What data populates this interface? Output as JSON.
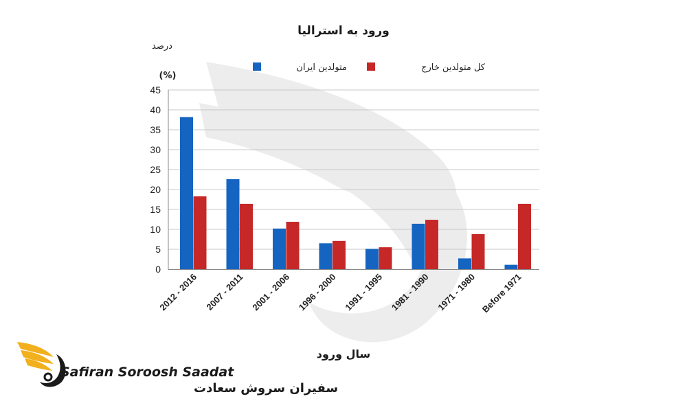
{
  "chart_data": {
    "type": "bar",
    "title": "ورود به استرالیا",
    "y_axis_caption": "درصد",
    "y_unit": "(%)",
    "xlabel": "سال ورود",
    "ylim": [
      0,
      45
    ],
    "yticks": [
      0,
      5,
      10,
      15,
      20,
      25,
      30,
      35,
      40,
      45
    ],
    "grid": true,
    "legend_position": "top",
    "categories": [
      "2012 - 2016",
      "2007 - 2011",
      "2001 - 2006",
      "1996 - 2000",
      "1991 - 1995",
      "1981 - 1990",
      "1971 - 1980",
      "Before 1971"
    ],
    "series": [
      {
        "name": "متولدین ایران",
        "color": "#1565c0",
        "values": [
          38.2,
          22.6,
          10.2,
          6.5,
          5.1,
          11.4,
          2.7,
          1.1
        ]
      },
      {
        "name": "کل متولدین خارج",
        "color": "#c62828",
        "values": [
          18.3,
          16.4,
          11.9,
          7.1,
          5.5,
          12.4,
          8.8,
          16.4
        ]
      }
    ]
  },
  "brand": {
    "name_en": "Safiran Soroosh Saadat",
    "name_fa": "سفیران سروش سعادت",
    "color": "#f2b01e"
  }
}
